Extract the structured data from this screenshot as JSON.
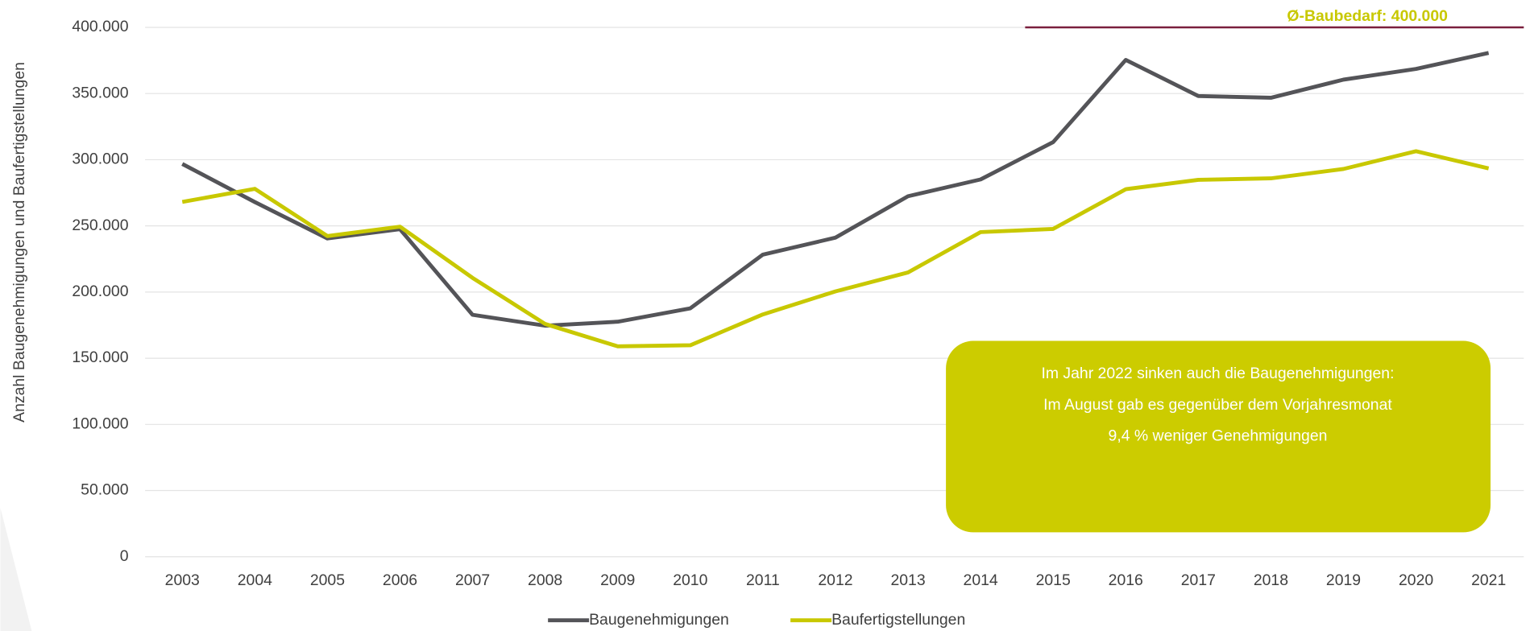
{
  "chart_data": {
    "type": "line",
    "y_label": "Anzahl Baugenehmigungen und Baufertigstellungen",
    "categories": [
      "2003",
      "2004",
      "2005",
      "2006",
      "2007",
      "2008",
      "2009",
      "2010",
      "2011",
      "2012",
      "2013",
      "2014",
      "2015",
      "2016",
      "2017",
      "2018",
      "2019",
      "2020",
      "2021"
    ],
    "series": [
      {
        "name": "Baugenehmigungen",
        "color": "#545458",
        "values": [
          296800,
          268000,
          240500,
          247500,
          182800,
          174600,
          177600,
          187700,
          228300,
          241100,
          272400,
          285100,
          313300,
          375400,
          348100,
          346800,
          360500,
          368600,
          380700
        ]
      },
      {
        "name": "Baufertigstellungen",
        "color": "#c8c800",
        "values": [
          268100,
          278000,
          242300,
          249400,
          210700,
          175900,
          159000,
          159800,
          183100,
          200500,
          214800,
          245300,
          247700,
          277700,
          284800,
          285900,
          293000,
          306400,
          293400
        ]
      }
    ],
    "ylim": [
      0,
      400000
    ],
    "yticks": [
      0,
      {
        "value": 50000,
        "label": "50.000"
      },
      {
        "value": 100000,
        "label": "100.000"
      },
      {
        "value": 150000,
        "label": "150.000"
      },
      {
        "value": 200000,
        "label": "200.000"
      },
      {
        "value": 250000,
        "label": "250.000"
      },
      {
        "value": 300000,
        "label": "300.000"
      },
      {
        "value": 350000,
        "label": "350.000"
      },
      {
        "value": 400000,
        "label": "400.000"
      }
    ],
    "grid": true,
    "reference_line": {
      "text": "Ø-Baubedarf: 400.000",
      "value": 400000,
      "color": "#7a1f3d",
      "text_color": "#c8c800"
    },
    "callout": {
      "lines": [
        "Im Jahr 2022 sinken auch die Baugenehmigungen:",
        "Im August gab es gegenüber dem Vorjahresmonat",
        "9,4 % weniger Genehmigungen"
      ],
      "color": "#cccc00"
    },
    "legend": "bottom"
  }
}
